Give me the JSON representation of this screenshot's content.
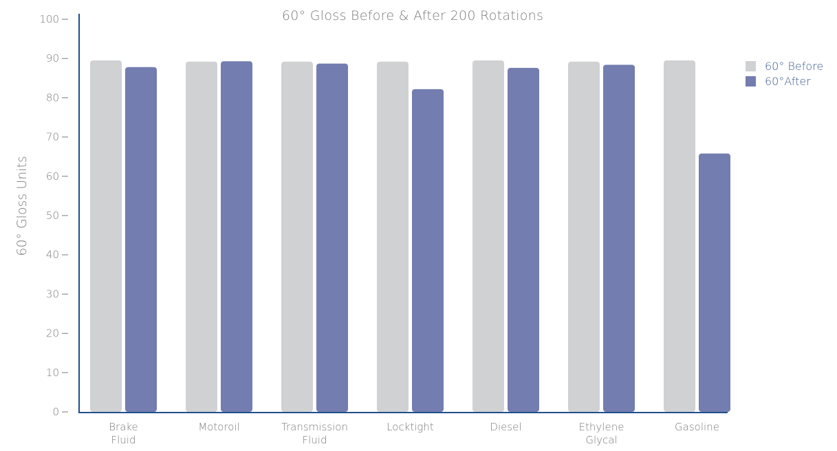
{
  "chart_data": {
    "type": "bar",
    "title": "60° Gloss Before & After 200 Rotations",
    "xlabel": "",
    "ylabel": "60° Gloss Units",
    "ylim": [
      0,
      100
    ],
    "yticks": [
      0,
      10,
      20,
      30,
      40,
      50,
      60,
      70,
      80,
      90,
      100
    ],
    "categories": [
      [
        "Brake",
        "Fluid"
      ],
      [
        "Motoroil"
      ],
      [
        "Transmission",
        "Fluid"
      ],
      [
        "Locktight"
      ],
      [
        "Diesel"
      ],
      [
        "Ethylene",
        "Glycal"
      ],
      [
        "Gasoline"
      ]
    ],
    "series": [
      {
        "name": "60° Before",
        "color": "#d0d1d3",
        "values": [
          89.5,
          89.2,
          89.2,
          89.2,
          89.5,
          89.2,
          89.5
        ]
      },
      {
        "name": "60°After",
        "color": "#737daf",
        "values": [
          87.8,
          89.3,
          88.7,
          82.2,
          87.6,
          88.4,
          65.8
        ]
      }
    ],
    "grid": false,
    "legend_position": "top-right",
    "axis_color": "#1f4e8c",
    "tick_label_color": "#7a7a7a"
  }
}
